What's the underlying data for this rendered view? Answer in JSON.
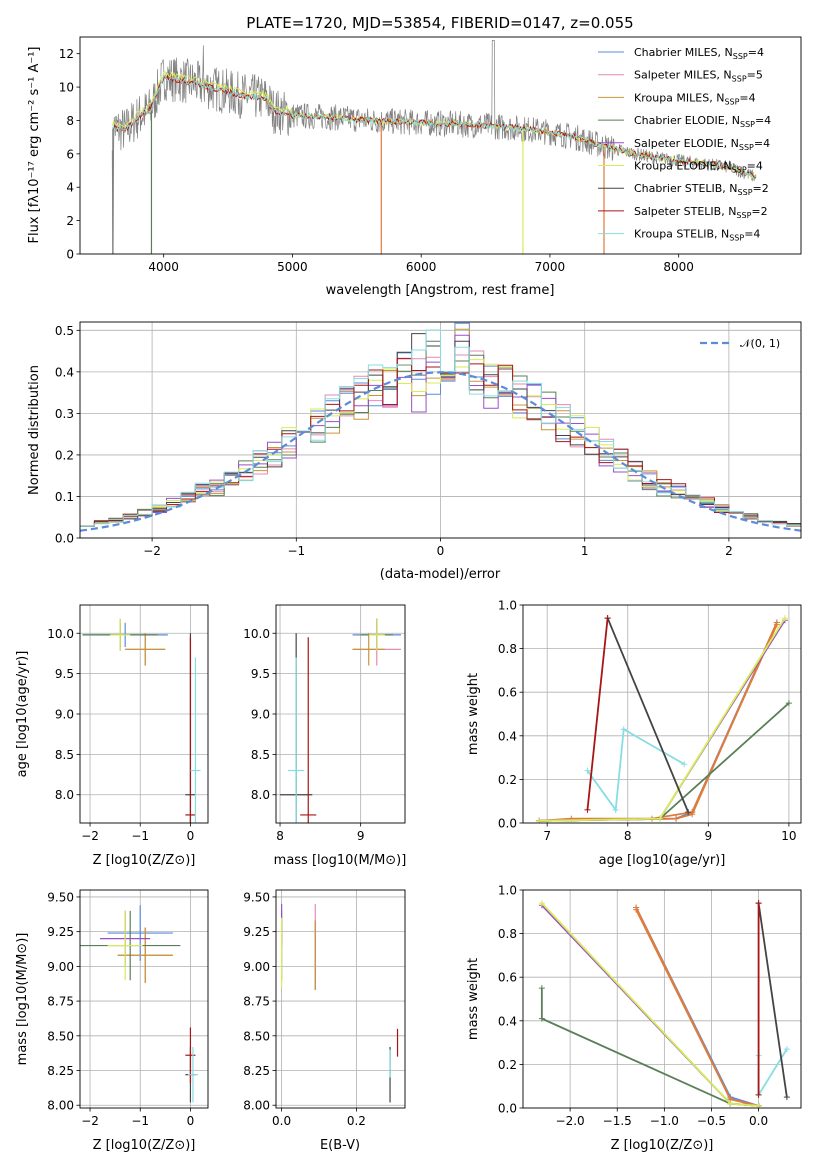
{
  "colors": {
    "chabrier_miles": "#5b8bd9",
    "salpeter_miles": "#e58ab5",
    "kroupa_miles": "#c89638",
    "chabrier_elodie": "#5a7f58",
    "salpeter_elodie": "#9b4fc9",
    "kroupa_elodie": "#d8ec55",
    "chabrier_stelib": "#444444",
    "salpeter_stelib": "#a61616",
    "kroupa_stelib": "#86dde3",
    "data": "#808080",
    "normal": "#5b8bd9",
    "orange": "#e07b39"
  },
  "chart_data": [
    {
      "type": "line",
      "title": "PLATE=1720, MJD=53854, FIBERID=0147, z=0.055",
      "xlabel": "wavelength [Angstrom, rest frame]",
      "ylabel": "Flux [fλ10⁻¹⁷ erg cm⁻² s⁻¹ A⁻¹]",
      "xlim": [
        3350,
        8950
      ],
      "ylim": [
        0,
        13
      ],
      "xticks": [
        "4000",
        "5000",
        "6000",
        "7000",
        "8000"
      ],
      "yticks": [
        "0",
        "2",
        "4",
        "6",
        "8",
        "10",
        "12"
      ],
      "grid": false,
      "legend_position": "top-right",
      "series": [
        {
          "name": "Chabrier MILES, N",
          "sub": "SSP",
          "suffix": "=4"
        },
        {
          "name": "Salpeter MILES, N",
          "sub": "SSP",
          "suffix": "=5"
        },
        {
          "name": "Kroupa MILES, N",
          "sub": "SSP",
          "suffix": "=4"
        },
        {
          "name": "Chabrier ELODIE, N",
          "sub": "SSP",
          "suffix": "=4"
        },
        {
          "name": "Salpeter ELODIE, N",
          "sub": "SSP",
          "suffix": "=4"
        },
        {
          "name": "Kroupa ELODIE, N",
          "sub": "SSP",
          "suffix": "=4"
        },
        {
          "name": "Chabrier STELIB, N",
          "sub": "SSP",
          "suffix": "=2"
        },
        {
          "name": "Salpeter STELIB, N",
          "sub": "SSP",
          "suffix": "=2"
        },
        {
          "name": "Kroupa STELIB, N",
          "sub": "SSP",
          "suffix": "=4"
        }
      ],
      "model_continuum": {
        "x": [
          3600,
          3700,
          3800,
          3900,
          4000,
          4200,
          4400,
          4600,
          4800,
          4850,
          5000,
          5300,
          5600,
          5900,
          6200,
          6500,
          6800,
          7000,
          7200,
          7400,
          7600,
          7800,
          8000,
          8200,
          8400,
          8600
        ],
        "y": [
          7.6,
          7.4,
          8.2,
          8.7,
          10.6,
          10.3,
          9.9,
          9.5,
          9.3,
          8.6,
          8.3,
          8.2,
          8.0,
          7.9,
          7.8,
          7.7,
          7.5,
          7.3,
          7.0,
          6.5,
          6.1,
          5.8,
          5.6,
          5.4,
          5.2,
          4.6
        ]
      }
    },
    {
      "type": "bar",
      "xlabel": "(data-model)/error",
      "ylabel": "Normed distribution",
      "xlim": [
        -2.5,
        2.5
      ],
      "ylim": [
        0,
        0.52
      ],
      "xticks": [
        "−2",
        "−1",
        "0",
        "1",
        "2"
      ],
      "yticks": [
        "0.0",
        "0.1",
        "0.2",
        "0.3",
        "0.4",
        "0.5"
      ],
      "grid": true,
      "legend_position": "top-right",
      "legend": "𝒩(0, 1)",
      "histogram_bin_width": 0.1,
      "normal_mean": 0,
      "normal_sigma": 1
    },
    {
      "type": "scatter",
      "xlabel": "Z [log10(Z/Z⊙)]",
      "ylabel": "age  [log10(age/yr)]",
      "xlim": [
        -2.2,
        0.35
      ],
      "ylim": [
        7.65,
        10.35
      ],
      "xticks": [
        "−2",
        "−1",
        "0"
      ],
      "yticks": [
        "8.0",
        "8.5",
        "9.0",
        "9.5",
        "10.0"
      ],
      "grid": true,
      "points": [
        {
          "x": -1.3,
          "y": 9.98,
          "xerr": 0.85,
          "yerr": 0.15
        },
        {
          "x": -0.9,
          "y": 9.8,
          "xerr": 0.4,
          "yerr": 0.2
        },
        {
          "x": -0.9,
          "y": 9.8,
          "xerr": 0.4,
          "yerr": 0.2
        },
        {
          "x": -1.4,
          "y": 9.98,
          "xerr": 0.75,
          "yerr": 0.15
        },
        {
          "x": -1.4,
          "y": 9.98,
          "xerr": 0.2,
          "yerr": 0.2
        },
        {
          "x": -1.4,
          "y": 9.98,
          "xerr": 0.2,
          "yerr": 0.2
        },
        {
          "x": 0.0,
          "y": 8.0,
          "xerr": 0.1,
          "yerr": 2.0
        },
        {
          "x": 0.0,
          "y": 7.75,
          "xerr": 0.1,
          "yerr": 2.2
        },
        {
          "x": 0.1,
          "y": 8.3,
          "xerr": 0.1,
          "yerr": 1.4
        }
      ]
    },
    {
      "type": "scatter",
      "xlabel": "mass [log10(M/M⊙)]",
      "xlim": [
        7.95,
        9.55
      ],
      "ylim": [
        7.65,
        10.35
      ],
      "xticks": [
        "8",
        "9"
      ],
      "yticks": [
        "8.0",
        "8.5",
        "9.0",
        "9.5",
        "10.0"
      ],
      "grid": true,
      "points": [
        {
          "x": 9.2,
          "y": 9.98,
          "xerr": 0.3,
          "yerr": 0.15
        },
        {
          "x": 9.2,
          "y": 9.8,
          "xerr": 0.3,
          "yerr": 0.2
        },
        {
          "x": 9.1,
          "y": 9.8,
          "xerr": 0.2,
          "yerr": 0.2
        },
        {
          "x": 9.2,
          "y": 9.98,
          "xerr": 0.2,
          "yerr": 0.2
        },
        {
          "x": 9.2,
          "y": 9.98,
          "xerr": 0.1,
          "yerr": 0.2
        },
        {
          "x": 9.2,
          "y": 9.98,
          "xerr": 0.1,
          "yerr": 0.2
        },
        {
          "x": 8.2,
          "y": 8.0,
          "xerr": 0.2,
          "yerr": 2.0
        },
        {
          "x": 8.35,
          "y": 7.75,
          "xerr": 0.1,
          "yerr": 2.2
        },
        {
          "x": 8.2,
          "y": 8.3,
          "xerr": 0.1,
          "yerr": 1.4
        }
      ]
    },
    {
      "type": "line",
      "xlabel": "age  [log10(age/yr)]",
      "ylabel": "mass weight",
      "xlim": [
        6.7,
        10.15
      ],
      "ylim": [
        0,
        1
      ],
      "xticks": [
        "7",
        "8",
        "9",
        "10"
      ],
      "yticks": [
        "0.0",
        "0.2",
        "0.4",
        "0.6",
        "0.8",
        "1.0"
      ],
      "grid": true,
      "series": [
        {
          "x": [
            6.9,
            8.6,
            8.8,
            9.85
          ],
          "y": [
            0.01,
            0.02,
            0.05,
            0.92
          ]
        },
        {
          "x": [
            6.9,
            7.3,
            8.3,
            8.8,
            9.85
          ],
          "y": [
            0.01,
            0.02,
            0.02,
            0.05,
            0.91
          ]
        },
        {
          "x": [
            6.9,
            8.6,
            8.8,
            9.85
          ],
          "y": [
            0.01,
            0.02,
            0.04,
            0.92
          ]
        },
        {
          "x": [
            6.9,
            8.4,
            10.0
          ],
          "y": [
            0.01,
            0.02,
            0.55
          ]
        },
        {
          "x": [
            6.9,
            8.4,
            9.95
          ],
          "y": [
            0.01,
            0.02,
            0.93
          ]
        },
        {
          "x": [
            6.9,
            8.4,
            9.95
          ],
          "y": [
            0.01,
            0.02,
            0.94
          ]
        },
        {
          "x": [
            7.75,
            8.75
          ],
          "y": [
            0.94,
            0.05
          ]
        },
        {
          "x": [
            7.5,
            7.75
          ],
          "y": [
            0.06,
            0.94
          ]
        },
        {
          "x": [
            7.5,
            7.85,
            7.95,
            8.7
          ],
          "y": [
            0.24,
            0.06,
            0.43,
            0.27
          ]
        }
      ]
    },
    {
      "type": "scatter",
      "xlabel": "Z [log10(Z/Z⊙)]",
      "ylabel": "mass [log10(M/M⊙)]",
      "xlim": [
        -2.2,
        0.35
      ],
      "ylim": [
        7.98,
        9.55
      ],
      "xticks": [
        "−2",
        "−1",
        "0"
      ],
      "yticks": [
        "8.00",
        "8.25",
        "8.50",
        "8.75",
        "9.00",
        "9.25",
        "9.50"
      ],
      "grid": true,
      "points": [
        {
          "x": -1.0,
          "y": 9.24,
          "xerr": 0.65,
          "yerr": 0.2
        },
        {
          "x": -0.9,
          "y": 9.08,
          "xerr": 0.55,
          "yerr": 0.2
        },
        {
          "x": -0.9,
          "y": 9.08,
          "xerr": 0.55,
          "yerr": 0.2
        },
        {
          "x": -1.2,
          "y": 9.15,
          "xerr": 1.0,
          "yerr": 0.25
        },
        {
          "x": -1.3,
          "y": 9.2,
          "xerr": 0.5,
          "yerr": 0.2
        },
        {
          "x": -1.3,
          "y": 9.15,
          "xerr": 0.35,
          "yerr": 0.25
        },
        {
          "x": 0.0,
          "y": 8.22,
          "xerr": 0.1,
          "yerr": 0.2
        },
        {
          "x": 0.0,
          "y": 8.36,
          "xerr": 0.1,
          "yerr": 0.2
        },
        {
          "x": 0.05,
          "y": 8.22,
          "xerr": 0.1,
          "yerr": 0.2
        }
      ]
    },
    {
      "type": "scatter",
      "xlabel": "E(B-V)",
      "xlim": [
        -0.015,
        0.33
      ],
      "ylim": [
        7.98,
        9.55
      ],
      "xticks": [
        "0.0",
        "0.2"
      ],
      "yticks": [
        "8.00",
        "8.25",
        "8.50",
        "8.75",
        "9.00",
        "9.25",
        "9.50"
      ],
      "grid": true,
      "points": [
        {
          "x": 0.09,
          "y": 9.08,
          "yerr": 0.25
        },
        {
          "x": 0.09,
          "y": 9.15,
          "yerr": 0.3
        },
        {
          "x": 0.09,
          "y": 9.08,
          "yerr": 0.25
        },
        {
          "x": 0.0,
          "y": 9.15,
          "yerr": 0.25
        },
        {
          "x": 0.0,
          "y": 9.3,
          "yerr": 0.15
        },
        {
          "x": 0.0,
          "y": 9.1,
          "yerr": 0.25
        },
        {
          "x": 0.29,
          "y": 8.22,
          "yerr": 0.2
        },
        {
          "x": 0.31,
          "y": 8.45,
          "yerr": 0.1
        },
        {
          "x": 0.29,
          "y": 8.3,
          "yerr": 0.1
        }
      ]
    },
    {
      "type": "line",
      "xlabel": "Z [log10(Z/Z⊙)]",
      "ylabel": "mass weight",
      "xlim": [
        -2.5,
        0.45
      ],
      "ylim": [
        0,
        1
      ],
      "xticks": [
        "−2.0",
        "−1.5",
        "−1.0",
        "−0.5",
        "0.0"
      ],
      "yticks": [
        "0.0",
        "0.2",
        "0.4",
        "0.6",
        "0.8",
        "1.0"
      ],
      "grid": true,
      "series": [
        {
          "x": [
            -1.3,
            -0.3,
            0.0
          ],
          "y": [
            0.92,
            0.05,
            0.01
          ]
        },
        {
          "x": [
            -1.3,
            -0.3,
            0.0
          ],
          "y": [
            0.91,
            0.04,
            0.01
          ]
        },
        {
          "x": [
            -1.3,
            -0.3,
            0.0
          ],
          "y": [
            0.92,
            0.04,
            0.01
          ]
        },
        {
          "x": [
            -2.3,
            -2.3,
            -0.3,
            0.0
          ],
          "y": [
            0.55,
            0.41,
            0.02,
            0.01
          ]
        },
        {
          "x": [
            -2.3,
            -0.3,
            0.0
          ],
          "y": [
            0.93,
            0.02,
            0.01
          ]
        },
        {
          "x": [
            -2.3,
            -0.3,
            0.0
          ],
          "y": [
            0.94,
            0.02,
            0.01
          ]
        },
        {
          "x": [
            0.0,
            0.3
          ],
          "y": [
            0.94,
            0.05
          ]
        },
        {
          "x": [
            0.0,
            0.0
          ],
          "y": [
            0.06,
            0.94
          ]
        },
        {
          "x": [
            0.0,
            0.0,
            0.3
          ],
          "y": [
            0.24,
            0.06,
            0.27
          ]
        }
      ]
    }
  ]
}
